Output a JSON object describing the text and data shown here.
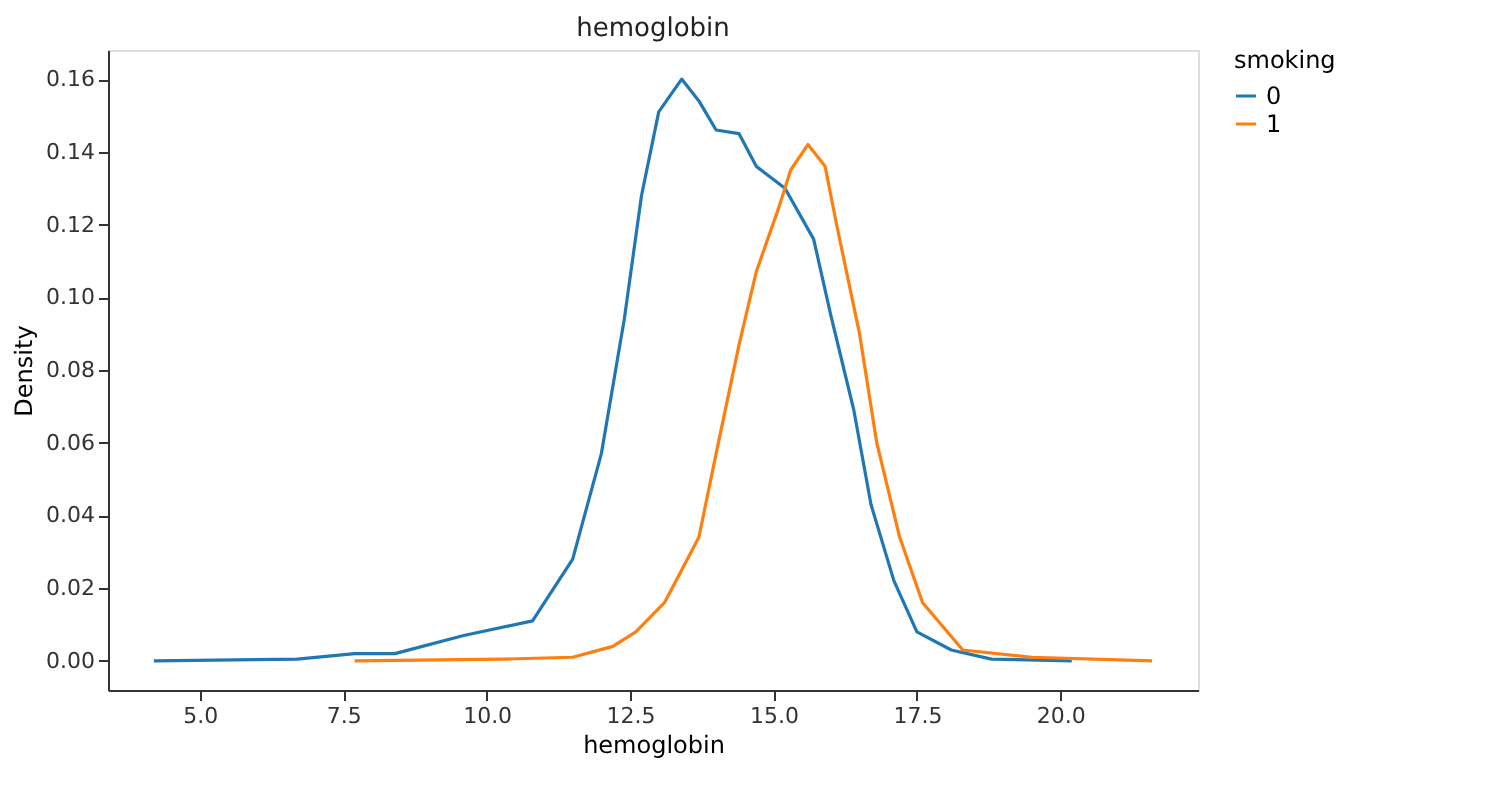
{
  "chart_data": {
    "type": "line",
    "title": "hemoglobin",
    "xlabel": "hemoglobin",
    "ylabel": "Density",
    "legend_title": "smoking",
    "legend": "right",
    "grid": false,
    "marker": "none",
    "line_style": "solid",
    "xlim": [
      3.4,
      22.4
    ],
    "xticks": [
      {
        "value": 5,
        "label": "5.0"
      },
      {
        "value": 7.5,
        "label": "7.5"
      },
      {
        "value": 10,
        "label": "10.0"
      },
      {
        "value": 12.5,
        "label": "12.5"
      },
      {
        "value": 15,
        "label": "15.0"
      },
      {
        "value": 17.5,
        "label": "17.5"
      },
      {
        "value": 20,
        "label": "20.0"
      }
    ],
    "ylim": [
      -0.008,
      0.168
    ],
    "yticks": [
      {
        "value": 0,
        "label": "0.00"
      },
      {
        "value": 0.02,
        "label": "0.02"
      },
      {
        "value": 0.04,
        "label": "0.04"
      },
      {
        "value": 0.06,
        "label": "0.06"
      },
      {
        "value": 0.08,
        "label": "0.08"
      },
      {
        "value": 0.1,
        "label": "0.10"
      },
      {
        "value": 0.12,
        "label": "0.12"
      },
      {
        "value": 0.14,
        "label": "0.14"
      },
      {
        "value": 0.16,
        "label": "0.16"
      }
    ],
    "series": [
      {
        "name": "0",
        "color": "#1f77b4",
        "x": [
          4.2,
          6.7,
          7.7,
          8.4,
          9.6,
          10.8,
          11.5,
          12.0,
          12.4,
          12.7,
          13.0,
          13.4,
          13.7,
          14.0,
          14.4,
          14.7,
          15.2,
          15.7,
          16.0,
          16.4,
          16.7,
          17.1,
          17.5,
          18.1,
          18.8,
          20.2
        ],
        "values": [
          0.0,
          0.0005,
          0.002,
          0.002,
          0.007,
          0.011,
          0.028,
          0.057,
          0.094,
          0.128,
          0.151,
          0.16,
          0.154,
          0.146,
          0.145,
          0.136,
          0.13,
          0.116,
          0.095,
          0.069,
          0.043,
          0.022,
          0.008,
          0.003,
          0.0005,
          0.0
        ]
      },
      {
        "name": "1",
        "color": "#ff7f0e",
        "x": [
          7.7,
          10.3,
          11.5,
          12.2,
          12.6,
          13.1,
          13.7,
          14.0,
          14.4,
          14.7,
          15.1,
          15.3,
          15.6,
          15.9,
          16.1,
          16.5,
          16.8,
          17.2,
          17.6,
          18.3,
          19.5,
          21.6
        ],
        "values": [
          0.0,
          0.0005,
          0.001,
          0.004,
          0.008,
          0.016,
          0.034,
          0.057,
          0.087,
          0.107,
          0.125,
          0.135,
          0.142,
          0.136,
          0.12,
          0.09,
          0.06,
          0.034,
          0.016,
          0.003,
          0.001,
          0.0
        ]
      }
    ]
  }
}
